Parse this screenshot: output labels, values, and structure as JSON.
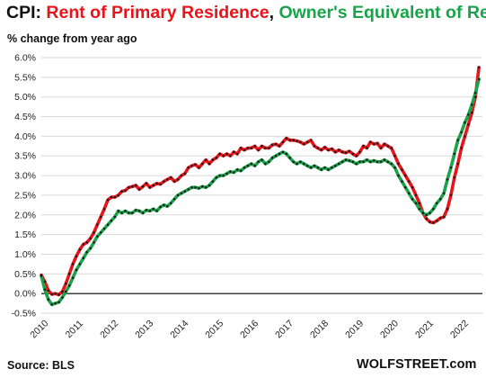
{
  "header": {
    "title_prefix": "CPI: ",
    "title_series1": "Rent of Primary Residence",
    "title_sep": ", ",
    "title_series2": "Owner's Equivalent of Rent",
    "subtitle": "% change from year ago"
  },
  "footer": {
    "source": "Source: BLS",
    "brand": "WOLFSTREET.com"
  },
  "colors": {
    "series1": "#e8141b",
    "series2": "#1aa34a",
    "dots": "#1a1a1a",
    "grid": "#d9d9d9",
    "zero_line": "#000000"
  },
  "chart_data": {
    "type": "line",
    "ylim": [
      -0.5,
      6.0
    ],
    "xlim": [
      2010.0,
      2022.6
    ],
    "yticks": [
      "-0.5%",
      "0.0%",
      "0.5%",
      "1.0%",
      "1.5%",
      "2.0%",
      "2.5%",
      "3.0%",
      "3.5%",
      "4.0%",
      "4.5%",
      "5.0%",
      "5.5%",
      "6.0%"
    ],
    "xticks": [
      "2010",
      "2011",
      "2012",
      "2013",
      "2014",
      "2015",
      "2016",
      "2017",
      "2018",
      "2019",
      "2020",
      "2021",
      "2022"
    ],
    "grid": "horizontal",
    "series": [
      {
        "name": "Rent of Primary Residence",
        "color": "#e8141b",
        "points": [
          [
            2010.0,
            0.47
          ],
          [
            2010.1,
            0.3
          ],
          [
            2010.2,
            0.08
          ],
          [
            2010.3,
            -0.02
          ],
          [
            2010.4,
            0.0
          ],
          [
            2010.5,
            -0.03
          ],
          [
            2010.6,
            0.05
          ],
          [
            2010.7,
            0.25
          ],
          [
            2010.8,
            0.5
          ],
          [
            2010.9,
            0.75
          ],
          [
            2011.0,
            0.95
          ],
          [
            2011.1,
            1.12
          ],
          [
            2011.2,
            1.25
          ],
          [
            2011.3,
            1.3
          ],
          [
            2011.4,
            1.4
          ],
          [
            2011.5,
            1.55
          ],
          [
            2011.6,
            1.75
          ],
          [
            2011.7,
            1.95
          ],
          [
            2011.8,
            2.15
          ],
          [
            2011.9,
            2.38
          ],
          [
            2012.0,
            2.45
          ],
          [
            2012.1,
            2.45
          ],
          [
            2012.2,
            2.5
          ],
          [
            2012.3,
            2.6
          ],
          [
            2012.4,
            2.62
          ],
          [
            2012.5,
            2.7
          ],
          [
            2012.6,
            2.72
          ],
          [
            2012.7,
            2.75
          ],
          [
            2012.8,
            2.65
          ],
          [
            2012.9,
            2.72
          ],
          [
            2013.0,
            2.8
          ],
          [
            2013.1,
            2.7
          ],
          [
            2013.2,
            2.75
          ],
          [
            2013.3,
            2.8
          ],
          [
            2013.4,
            2.78
          ],
          [
            2013.5,
            2.85
          ],
          [
            2013.6,
            2.9
          ],
          [
            2013.7,
            2.95
          ],
          [
            2013.8,
            2.85
          ],
          [
            2013.9,
            2.9
          ],
          [
            2014.0,
            3.0
          ],
          [
            2014.1,
            3.05
          ],
          [
            2014.2,
            3.2
          ],
          [
            2014.3,
            3.25
          ],
          [
            2014.4,
            3.28
          ],
          [
            2014.5,
            3.2
          ],
          [
            2014.6,
            3.3
          ],
          [
            2014.7,
            3.4
          ],
          [
            2014.8,
            3.3
          ],
          [
            2014.9,
            3.4
          ],
          [
            2015.0,
            3.45
          ],
          [
            2015.1,
            3.55
          ],
          [
            2015.2,
            3.5
          ],
          [
            2015.3,
            3.55
          ],
          [
            2015.4,
            3.5
          ],
          [
            2015.5,
            3.6
          ],
          [
            2015.6,
            3.55
          ],
          [
            2015.7,
            3.7
          ],
          [
            2015.8,
            3.65
          ],
          [
            2015.9,
            3.7
          ],
          [
            2016.0,
            3.7
          ],
          [
            2016.1,
            3.75
          ],
          [
            2016.2,
            3.65
          ],
          [
            2016.3,
            3.75
          ],
          [
            2016.4,
            3.7
          ],
          [
            2016.5,
            3.7
          ],
          [
            2016.6,
            3.78
          ],
          [
            2016.7,
            3.8
          ],
          [
            2016.8,
            3.75
          ],
          [
            2016.9,
            3.85
          ],
          [
            2017.0,
            3.95
          ],
          [
            2017.1,
            3.9
          ],
          [
            2017.2,
            3.9
          ],
          [
            2017.3,
            3.88
          ],
          [
            2017.4,
            3.85
          ],
          [
            2017.5,
            3.8
          ],
          [
            2017.6,
            3.85
          ],
          [
            2017.7,
            3.9
          ],
          [
            2017.8,
            3.75
          ],
          [
            2017.9,
            3.7
          ],
          [
            2018.0,
            3.65
          ],
          [
            2018.1,
            3.72
          ],
          [
            2018.2,
            3.65
          ],
          [
            2018.3,
            3.68
          ],
          [
            2018.4,
            3.6
          ],
          [
            2018.5,
            3.65
          ],
          [
            2018.6,
            3.6
          ],
          [
            2018.7,
            3.58
          ],
          [
            2018.8,
            3.62
          ],
          [
            2018.9,
            3.55
          ],
          [
            2019.0,
            3.5
          ],
          [
            2019.1,
            3.6
          ],
          [
            2019.2,
            3.75
          ],
          [
            2019.3,
            3.7
          ],
          [
            2019.4,
            3.85
          ],
          [
            2019.5,
            3.8
          ],
          [
            2019.6,
            3.82
          ],
          [
            2019.7,
            3.7
          ],
          [
            2019.8,
            3.8
          ],
          [
            2019.9,
            3.75
          ],
          [
            2020.0,
            3.7
          ],
          [
            2020.1,
            3.5
          ],
          [
            2020.2,
            3.3
          ],
          [
            2020.3,
            3.15
          ],
          [
            2020.4,
            3.0
          ],
          [
            2020.5,
            2.85
          ],
          [
            2020.6,
            2.7
          ],
          [
            2020.7,
            2.5
          ],
          [
            2020.8,
            2.3
          ],
          [
            2020.9,
            2.05
          ],
          [
            2021.0,
            1.9
          ],
          [
            2021.1,
            1.82
          ],
          [
            2021.2,
            1.8
          ],
          [
            2021.3,
            1.85
          ],
          [
            2021.4,
            1.92
          ],
          [
            2021.5,
            1.95
          ],
          [
            2021.6,
            2.15
          ],
          [
            2021.7,
            2.5
          ],
          [
            2021.8,
            2.95
          ],
          [
            2021.9,
            3.3
          ],
          [
            2022.0,
            3.7
          ],
          [
            2022.1,
            4.0
          ],
          [
            2022.2,
            4.3
          ],
          [
            2022.3,
            4.6
          ],
          [
            2022.4,
            5.0
          ],
          [
            2022.5,
            5.75
          ]
        ]
      },
      {
        "name": "Owner's Equivalent of Rent",
        "color": "#1aa34a",
        "points": [
          [
            2010.0,
            0.45
          ],
          [
            2010.1,
            0.1
          ],
          [
            2010.2,
            -0.15
          ],
          [
            2010.3,
            -0.28
          ],
          [
            2010.4,
            -0.25
          ],
          [
            2010.5,
            -0.22
          ],
          [
            2010.6,
            -0.1
          ],
          [
            2010.7,
            0.05
          ],
          [
            2010.8,
            0.2
          ],
          [
            2010.9,
            0.4
          ],
          [
            2011.0,
            0.6
          ],
          [
            2011.1,
            0.75
          ],
          [
            2011.2,
            0.9
          ],
          [
            2011.3,
            1.05
          ],
          [
            2011.4,
            1.15
          ],
          [
            2011.5,
            1.3
          ],
          [
            2011.6,
            1.45
          ],
          [
            2011.7,
            1.55
          ],
          [
            2011.8,
            1.65
          ],
          [
            2011.9,
            1.75
          ],
          [
            2012.0,
            1.85
          ],
          [
            2012.1,
            1.95
          ],
          [
            2012.2,
            2.1
          ],
          [
            2012.3,
            2.05
          ],
          [
            2012.4,
            2.1
          ],
          [
            2012.5,
            2.05
          ],
          [
            2012.6,
            2.05
          ],
          [
            2012.7,
            2.12
          ],
          [
            2012.8,
            2.1
          ],
          [
            2012.9,
            2.05
          ],
          [
            2013.0,
            2.12
          ],
          [
            2013.1,
            2.1
          ],
          [
            2013.2,
            2.15
          ],
          [
            2013.3,
            2.1
          ],
          [
            2013.4,
            2.2
          ],
          [
            2013.5,
            2.25
          ],
          [
            2013.6,
            2.22
          ],
          [
            2013.7,
            2.3
          ],
          [
            2013.8,
            2.4
          ],
          [
            2013.9,
            2.5
          ],
          [
            2014.0,
            2.55
          ],
          [
            2014.1,
            2.6
          ],
          [
            2014.2,
            2.65
          ],
          [
            2014.3,
            2.7
          ],
          [
            2014.4,
            2.7
          ],
          [
            2014.5,
            2.68
          ],
          [
            2014.6,
            2.72
          ],
          [
            2014.7,
            2.7
          ],
          [
            2014.8,
            2.75
          ],
          [
            2014.9,
            2.85
          ],
          [
            2015.0,
            2.95
          ],
          [
            2015.1,
            3.0
          ],
          [
            2015.2,
            3.0
          ],
          [
            2015.3,
            3.05
          ],
          [
            2015.4,
            3.1
          ],
          [
            2015.5,
            3.08
          ],
          [
            2015.6,
            3.15
          ],
          [
            2015.7,
            3.12
          ],
          [
            2015.8,
            3.2
          ],
          [
            2015.9,
            3.25
          ],
          [
            2016.0,
            3.3
          ],
          [
            2016.1,
            3.25
          ],
          [
            2016.2,
            3.35
          ],
          [
            2016.3,
            3.4
          ],
          [
            2016.4,
            3.3
          ],
          [
            2016.5,
            3.35
          ],
          [
            2016.6,
            3.45
          ],
          [
            2016.7,
            3.5
          ],
          [
            2016.8,
            3.55
          ],
          [
            2016.9,
            3.6
          ],
          [
            2017.0,
            3.55
          ],
          [
            2017.1,
            3.45
          ],
          [
            2017.2,
            3.35
          ],
          [
            2017.3,
            3.3
          ],
          [
            2017.4,
            3.35
          ],
          [
            2017.5,
            3.3
          ],
          [
            2017.6,
            3.25
          ],
          [
            2017.7,
            3.2
          ],
          [
            2017.8,
            3.25
          ],
          [
            2017.9,
            3.2
          ],
          [
            2018.0,
            3.15
          ],
          [
            2018.1,
            3.2
          ],
          [
            2018.2,
            3.15
          ],
          [
            2018.3,
            3.2
          ],
          [
            2018.4,
            3.25
          ],
          [
            2018.5,
            3.3
          ],
          [
            2018.6,
            3.35
          ],
          [
            2018.7,
            3.4
          ],
          [
            2018.8,
            3.38
          ],
          [
            2018.9,
            3.35
          ],
          [
            2019.0,
            3.3
          ],
          [
            2019.1,
            3.35
          ],
          [
            2019.2,
            3.35
          ],
          [
            2019.3,
            3.4
          ],
          [
            2019.4,
            3.35
          ],
          [
            2019.5,
            3.38
          ],
          [
            2019.6,
            3.35
          ],
          [
            2019.7,
            3.35
          ],
          [
            2019.8,
            3.4
          ],
          [
            2019.9,
            3.35
          ],
          [
            2020.0,
            3.3
          ],
          [
            2020.1,
            3.2
          ],
          [
            2020.2,
            3.0
          ],
          [
            2020.3,
            2.85
          ],
          [
            2020.4,
            2.7
          ],
          [
            2020.5,
            2.55
          ],
          [
            2020.6,
            2.4
          ],
          [
            2020.7,
            2.3
          ],
          [
            2020.8,
            2.15
          ],
          [
            2020.9,
            2.05
          ],
          [
            2021.0,
            2.0
          ],
          [
            2021.1,
            2.05
          ],
          [
            2021.2,
            2.15
          ],
          [
            2021.3,
            2.3
          ],
          [
            2021.4,
            2.4
          ],
          [
            2021.5,
            2.55
          ],
          [
            2021.6,
            2.9
          ],
          [
            2021.7,
            3.2
          ],
          [
            2021.8,
            3.55
          ],
          [
            2021.9,
            3.9
          ],
          [
            2022.0,
            4.1
          ],
          [
            2022.1,
            4.35
          ],
          [
            2022.2,
            4.55
          ],
          [
            2022.3,
            4.8
          ],
          [
            2022.4,
            5.1
          ],
          [
            2022.5,
            5.45
          ]
        ]
      }
    ]
  }
}
